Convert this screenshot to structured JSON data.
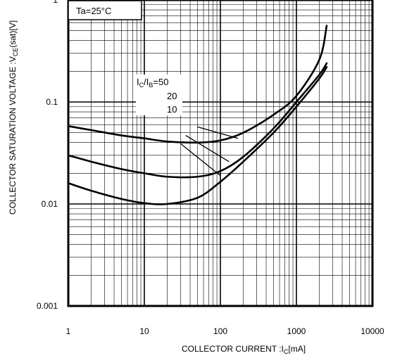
{
  "chart_data": {
    "type": "line",
    "x_scale": "log",
    "y_scale": "log",
    "xlim": [
      1,
      10000
    ],
    "ylim": [
      0.001,
      1
    ],
    "grid": true,
    "xlabel_main": "COLLECTOR CURRENT :I",
    "xlabel_sub": "C",
    "xlabel_tail": "[mA]",
    "ylabel_main": "COLLECTOR SATURATION VOLTAGE :V",
    "ylabel_sub": "CE",
    "ylabel_tail": "(sat)[V]",
    "x_ticks": [
      {
        "value": 1,
        "label": "1"
      },
      {
        "value": 10,
        "label": "10"
      },
      {
        "value": 100,
        "label": "100"
      },
      {
        "value": 1000,
        "label": "1000"
      },
      {
        "value": 10000,
        "label": "10000"
      }
    ],
    "y_ticks": [
      {
        "value": 0.001,
        "label": "0.001"
      },
      {
        "value": 0.01,
        "label": "0.01"
      },
      {
        "value": 0.1,
        "label": "0.1"
      },
      {
        "value": 1,
        "label": "1"
      }
    ],
    "condition_label": "Ta=25°C",
    "ratio_label": {
      "i1": "I",
      "s1": "C",
      "slash": "/I",
      "s2": "B",
      "tail": "=50"
    },
    "series_labels": [
      "20",
      "10"
    ],
    "series": [
      {
        "ratio": 50,
        "points": [
          [
            1,
            0.058
          ],
          [
            2,
            0.053
          ],
          [
            5,
            0.047
          ],
          [
            10,
            0.044
          ],
          [
            20,
            0.041
          ],
          [
            50,
            0.04
          ],
          [
            100,
            0.042
          ],
          [
            200,
            0.05
          ],
          [
            500,
            0.075
          ],
          [
            1000,
            0.115
          ],
          [
            2000,
            0.26
          ],
          [
            2500,
            0.56
          ]
        ]
      },
      {
        "ratio": 20,
        "points": [
          [
            1,
            0.03
          ],
          [
            2,
            0.026
          ],
          [
            5,
            0.022
          ],
          [
            10,
            0.02
          ],
          [
            20,
            0.0185
          ],
          [
            50,
            0.0185
          ],
          [
            100,
            0.021
          ],
          [
            200,
            0.029
          ],
          [
            500,
            0.055
          ],
          [
            1000,
            0.1
          ],
          [
            2000,
            0.185
          ],
          [
            2500,
            0.24
          ]
        ]
      },
      {
        "ratio": 10,
        "points": [
          [
            1,
            0.016
          ],
          [
            2,
            0.0135
          ],
          [
            5,
            0.0112
          ],
          [
            10,
            0.0102
          ],
          [
            20,
            0.01
          ],
          [
            50,
            0.0115
          ],
          [
            100,
            0.0165
          ],
          [
            200,
            0.026
          ],
          [
            500,
            0.05
          ],
          [
            1000,
            0.09
          ],
          [
            2000,
            0.17
          ],
          [
            2500,
            0.22
          ]
        ]
      }
    ],
    "label_leaders": [
      {
        "from": [
          50,
          0.057
        ],
        "to": [
          170,
          0.044
        ]
      },
      {
        "from": [
          35,
          0.047
        ],
        "to": [
          130,
          0.026
        ]
      },
      {
        "from": [
          30,
          0.039
        ],
        "to": [
          100,
          0.019
        ]
      }
    ]
  }
}
